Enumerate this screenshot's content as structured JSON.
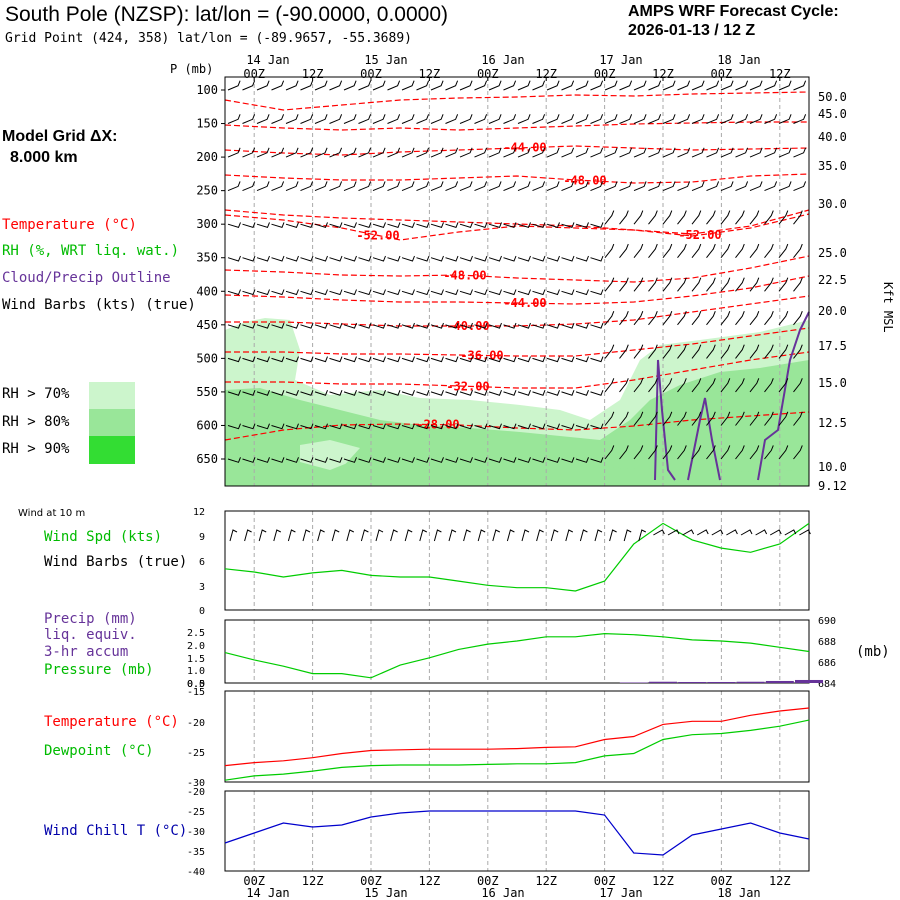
{
  "header": {
    "title": "South Pole (NZSP):  lat/lon = (-90.0000, 0.0000)",
    "grid_point": "Grid Point (424, 358) lat/lon = (-89.9657, -55.3689)",
    "cycle_label": "AMPS WRF Forecast Cycle:",
    "cycle_value": "2026-01-13 / 12  Z",
    "model_grid": "Model Grid ΔX:",
    "grid_dx": "8.000 km"
  },
  "legend": {
    "temperature": "Temperature (°C)",
    "rh": "RH (%, WRT liq. wat.)",
    "cloud": "Cloud/Precip Outline",
    "wind": "Wind Barbs (kts) (true)",
    "rh_bins": [
      {
        "label": "RH > 70%",
        "color": "#ccf5cc"
      },
      {
        "label": "RH > 80%",
        "color": "#99e699"
      },
      {
        "label": "RH > 90%",
        "color": "#33dd33"
      }
    ]
  },
  "time_axis": {
    "ticks": [
      "00Z",
      "12Z",
      "00Z",
      "12Z",
      "00Z",
      "12Z",
      "00Z",
      "12Z",
      "00Z",
      "12Z"
    ],
    "top_days": [
      "14 Jan",
      "15 Jan",
      "16 Jan",
      "17 Jan",
      "18 Jan"
    ],
    "bottom_days": [
      "14 Jan",
      "15 Jan",
      "16 Jan",
      "17 Jan",
      "18 Jan"
    ]
  },
  "chart_data": [
    {
      "type": "contour",
      "name": "time-height cross section",
      "p_label": "P (mb)",
      "pressure_levels": [
        100,
        150,
        200,
        250,
        300,
        350,
        400,
        450,
        500,
        550,
        600,
        650
      ],
      "right_axis_label": "Kft MSL",
      "right_axis_ticks": [
        "50.0",
        "45.0",
        "40.0",
        "35.0",
        "30.0",
        "25.0",
        "22.5",
        "20.0",
        "17.5",
        "15.0",
        "12.5",
        "10.0",
        "9.12"
      ],
      "temperature_contours": [
        {
          "label": "-44.00",
          "value": -44
        },
        {
          "label": "-48.00",
          "value": -48
        },
        {
          "label": "-52.00",
          "value": -52
        },
        {
          "label": "-52.00",
          "value": -52
        },
        {
          "label": "-48.00",
          "value": -48
        },
        {
          "label": "-44.00",
          "value": -44
        },
        {
          "label": "-40.00",
          "value": -40
        },
        {
          "label": "-36.00",
          "value": -36
        },
        {
          "label": "-32.00",
          "value": -32
        },
        {
          "label": "-28.00",
          "value": -28
        }
      ],
      "colors": {
        "temperature": "#ff0000",
        "cloud": "#663399",
        "wind": "#000000"
      }
    },
    {
      "type": "line",
      "name": "wind at 10 m",
      "panel_title": "Wind at 10 m",
      "label": "Wind Spd (kts)",
      "label2": "Wind Barbs (true)",
      "y_ticks": [
        "12",
        "9",
        "6",
        "3",
        "0"
      ],
      "ylim": [
        0,
        12
      ],
      "color": "#00cc00",
      "x_hours": [
        0,
        6,
        12,
        18,
        24,
        30,
        36,
        42,
        48,
        54,
        60,
        66,
        72,
        78,
        84,
        90,
        96,
        102,
        108,
        114,
        120
      ],
      "values": [
        5.0,
        4.6,
        4.0,
        4.5,
        4.8,
        4.2,
        4.0,
        4.0,
        3.5,
        3.0,
        2.7,
        2.7,
        2.3,
        3.5,
        8.0,
        10.5,
        8.5,
        7.5,
        7.0,
        8.0,
        10.5
      ]
    },
    {
      "type": "line",
      "name": "precip and pressure",
      "label_precip": "Precip (mm)",
      "label_liq": "liq. equiv.",
      "label_accum": "3-hr accum",
      "label_pressure": "Pressure (mb)",
      "unit_right": "(mb)",
      "y_left_ticks": [
        "2.5",
        "2.0",
        "1.5",
        "1.0",
        "0.5",
        "0.0"
      ],
      "y_right_ticks": [
        "690",
        "688",
        "686",
        "684"
      ],
      "ylim_precip": [
        0,
        2.5
      ],
      "ylim_pressure": [
        684,
        690
      ],
      "precip_color": "#663399",
      "pressure_color": "#00cc00",
      "x_hours": [
        0,
        6,
        12,
        18,
        24,
        30,
        36,
        42,
        48,
        54,
        60,
        66,
        72,
        78,
        84,
        90,
        96,
        102,
        108,
        114,
        120
      ],
      "pressure": [
        686.9,
        686.2,
        685.6,
        684.9,
        684.9,
        684.5,
        685.7,
        686.4,
        687.2,
        687.7,
        688.0,
        688.4,
        688.4,
        688.7,
        688.6,
        688.4,
        688.1,
        688.0,
        687.8,
        687.4,
        687.0
      ],
      "precip": [
        0,
        0,
        0,
        0,
        0,
        0,
        0,
        0,
        0,
        0,
        0,
        0,
        0,
        0,
        0.02,
        0.05,
        0.04,
        0.04,
        0.05,
        0.08,
        0.12
      ]
    },
    {
      "type": "line",
      "name": "temperature and dewpoint",
      "label_temp": "Temperature (°C)",
      "label_dew": "Dewpoint (°C)",
      "y_ticks": [
        "-15",
        "-20",
        "-25",
        "-30"
      ],
      "ylim": [
        -30,
        -15
      ],
      "series": [
        {
          "name": "Temperature",
          "color": "#ff0000",
          "values": [
            -27.3,
            -26.8,
            -26.5,
            -26.0,
            -25.3,
            -24.8,
            -24.7,
            -24.6,
            -24.6,
            -24.6,
            -24.5,
            -24.3,
            -24.2,
            -23.0,
            -22.5,
            -20.5,
            -20.0,
            -20.0,
            -19.0,
            -18.3,
            -17.8
          ]
        },
        {
          "name": "Dewpoint",
          "color": "#00cc00",
          "values": [
            -29.7,
            -29.0,
            -28.7,
            -28.2,
            -27.6,
            -27.3,
            -27.2,
            -27.2,
            -27.2,
            -27.1,
            -27.0,
            -27.0,
            -26.8,
            -25.7,
            -25.3,
            -23.0,
            -22.2,
            -22.0,
            -21.5,
            -20.8,
            -19.8
          ]
        }
      ],
      "x_hours": [
        0,
        6,
        12,
        18,
        24,
        30,
        36,
        42,
        48,
        54,
        60,
        66,
        72,
        78,
        84,
        90,
        96,
        102,
        108,
        114,
        120
      ]
    },
    {
      "type": "line",
      "name": "wind chill",
      "label": "Wind Chill T (°C)",
      "y_ticks": [
        "-20",
        "-25",
        "-30",
        "-35",
        "-40"
      ],
      "ylim": [
        -40,
        -20
      ],
      "color": "#0000cc",
      "x_hours": [
        0,
        6,
        12,
        18,
        24,
        30,
        36,
        42,
        48,
        54,
        60,
        66,
        72,
        78,
        84,
        90,
        96,
        102,
        108,
        114,
        120
      ],
      "values": [
        -33.0,
        -30.5,
        -28.0,
        -29.0,
        -28.5,
        -26.5,
        -25.5,
        -25.0,
        -25.0,
        -25.0,
        -25.0,
        -25.0,
        -25.0,
        -26.0,
        -35.5,
        -36.0,
        -31.0,
        -29.5,
        -28.0,
        -30.5,
        -32.0
      ]
    }
  ]
}
